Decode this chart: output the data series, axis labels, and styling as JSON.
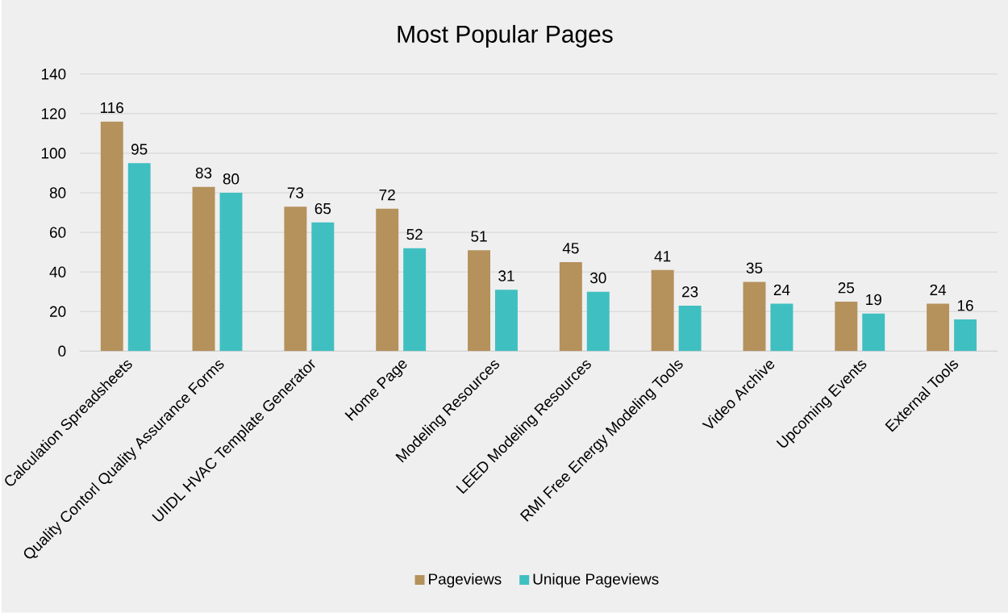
{
  "chart_data": {
    "type": "bar",
    "title": "Most Popular Pages",
    "categories": [
      "Calculation Spreadsheets",
      "Quality Contorl Quality Assurance Forms",
      "UIIDL HVAC Template Generator",
      "Home Page",
      "Modeling Resources",
      "LEED Modeling Resources",
      "RMI Free Energy Modeling Tools",
      "Video Archive",
      "Upcoming Events",
      "External Tools"
    ],
    "series": [
      {
        "name": "Pageviews",
        "color": "#b5915c",
        "values": [
          116,
          83,
          73,
          72,
          51,
          45,
          41,
          35,
          25,
          24
        ]
      },
      {
        "name": "Unique Pageviews",
        "color": "#40bfc1",
        "values": [
          95,
          80,
          65,
          52,
          31,
          30,
          23,
          24,
          19,
          16
        ]
      }
    ],
    "ylim": [
      0,
      140
    ],
    "yticks": [
      0,
      20,
      40,
      60,
      80,
      100,
      120,
      140
    ],
    "grid": "y",
    "legend": "bottom",
    "data_labels": true
  }
}
